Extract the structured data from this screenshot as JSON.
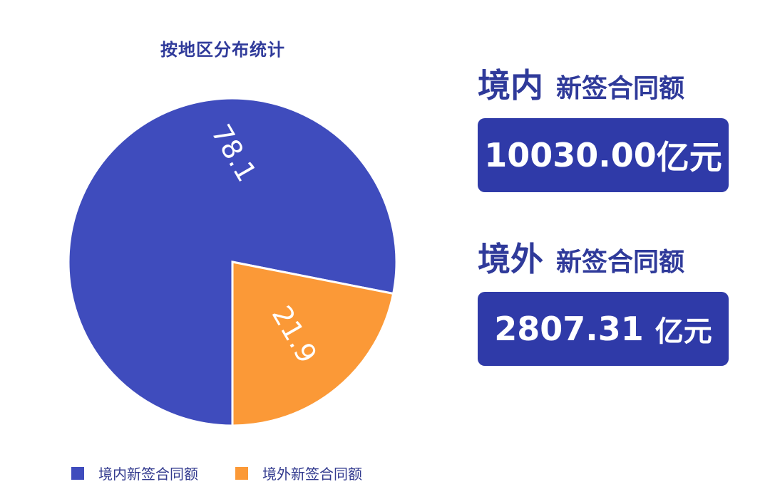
{
  "chart_data": {
    "type": "pie",
    "title": "按地区分布统计",
    "series": [
      {
        "name": "境内新签合同额",
        "value": 78.1,
        "color": "#3f4cbd"
      },
      {
        "name": "境外新签合同额",
        "value": 21.9,
        "color": "#fb9937"
      }
    ],
    "data_labels": [
      "78.1",
      "21.9"
    ],
    "legend_position": "bottom"
  },
  "panel": {
    "domestic": {
      "heading_big": "境内",
      "heading_small": "新签合同额",
      "value": "10030.00",
      "unit": "亿元"
    },
    "overseas": {
      "heading_big": "境外",
      "heading_small": "新签合同额",
      "value": "2807.31",
      "unit": "亿元"
    }
  },
  "colors": {
    "accent": "#2f3aa8",
    "domestic": "#3f4cbd",
    "overseas": "#fb9937",
    "text": "#2f3a9a"
  }
}
